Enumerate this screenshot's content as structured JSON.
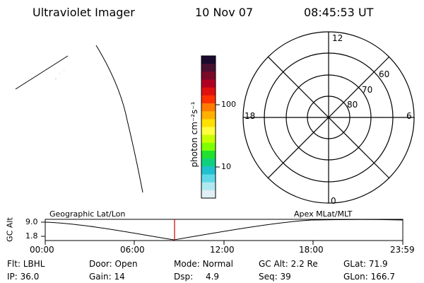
{
  "header": {
    "title": "Ultraviolet Imager",
    "date": "10 Nov 07",
    "time": "08:45:53 UT"
  },
  "colorbar": {
    "unit": "photon cm⁻²s⁻¹",
    "ticks": [
      "100",
      "10"
    ],
    "colors": [
      "#1a0a2e",
      "#4a1030",
      "#7a0a28",
      "#b00020",
      "#e01010",
      "#ff3000",
      "#ff7a00",
      "#ffb000",
      "#ffe000",
      "#ffff40",
      "#c8ff00",
      "#80ff00",
      "#20e030",
      "#10d080",
      "#20c0d0",
      "#60d8e8",
      "#b0e8f0",
      "#e0f0f4"
    ]
  },
  "polar": {
    "lat_labels": [
      "80",
      "70",
      "60"
    ],
    "mlt_labels": {
      "top": "12",
      "left": "18",
      "right": "6",
      "bottom": "0"
    }
  },
  "timeline": {
    "y_axis_label": "GC Alt",
    "y_ticks": [
      "9.0",
      "1.8"
    ],
    "left_title": "Geographic Lat/Lon",
    "right_title": "Apex MLat/MLT",
    "x_ticks": [
      "00:00",
      "06:00",
      "12:00",
      "18:00",
      "23:59"
    ],
    "marker_color": "#cc0000"
  },
  "status": {
    "row1": [
      {
        "label": "Flt:",
        "value": "LBHL"
      },
      {
        "label": "Door:",
        "value": "Open"
      },
      {
        "label": "Mode:",
        "value": "Normal"
      },
      {
        "label": "GC Alt:",
        "value": "2.2 Re"
      },
      {
        "label": "GLat:",
        "value": "71.9"
      }
    ],
    "row2": [
      {
        "label": "IP:",
        "value": "36.0"
      },
      {
        "label": "Gain:",
        "value": "14"
      },
      {
        "label": "Dsp:",
        "value": "4.9"
      },
      {
        "label": "Seq:",
        "value": "39"
      },
      {
        "label": "GLon:",
        "value": "166.7"
      }
    ]
  }
}
